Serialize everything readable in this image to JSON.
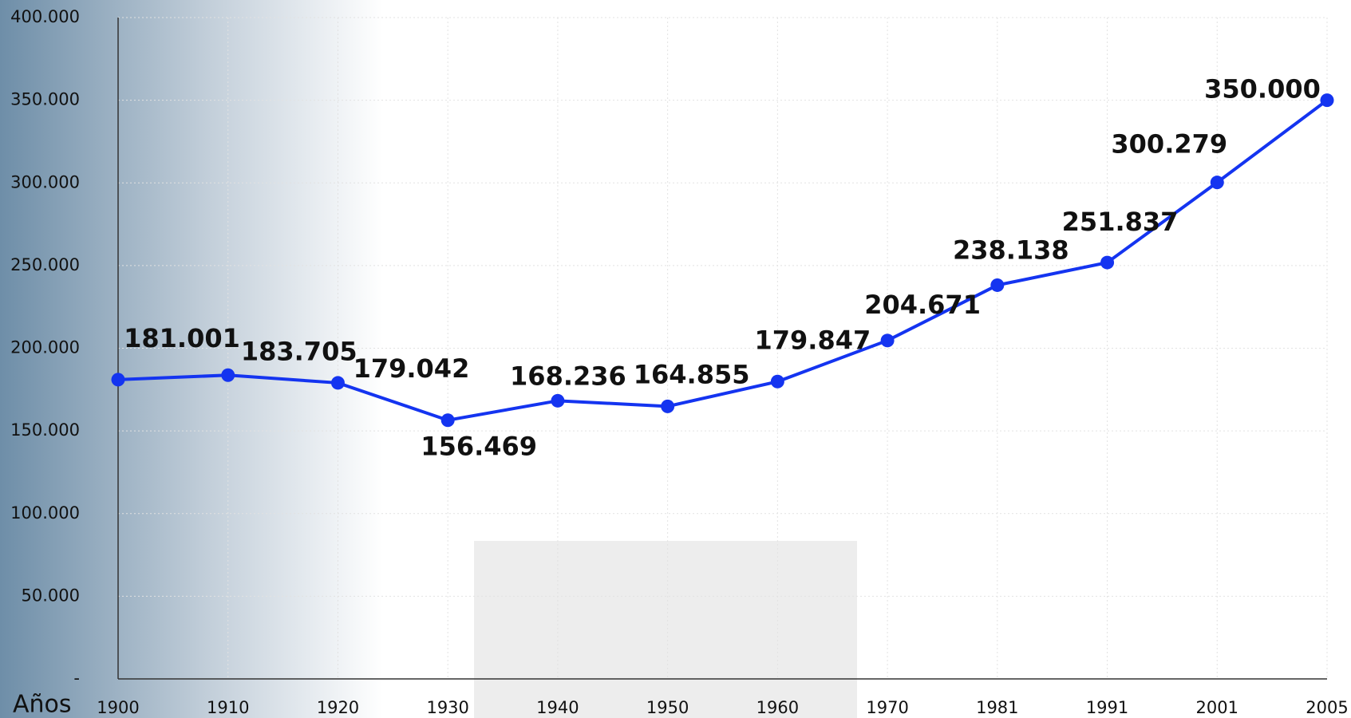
{
  "chart_data": {
    "type": "line",
    "x_label": "Años",
    "categories": [
      "1900",
      "1910",
      "1920",
      "1930",
      "1940",
      "1950",
      "1960",
      "1970",
      "1981",
      "1991",
      "2001",
      "2005"
    ],
    "series": [
      {
        "color": "#1434f0",
        "values": [
          181001,
          183705,
          179042,
          156469,
          168236,
          164855,
          179847,
          204671,
          238138,
          251837,
          300279,
          350000
        ],
        "value_labels": [
          "181.001",
          "183.705",
          "179.042",
          "156.469",
          "168.236",
          "164.855",
          "179.847",
          "204.671",
          "238.138",
          "251.837",
          "300.279",
          "350.000"
        ]
      }
    ],
    "ylim": [
      0,
      400000
    ],
    "yticks": [
      {
        "value": 0,
        "label": "-"
      },
      {
        "value": 50000,
        "label": "50.000"
      },
      {
        "value": 100000,
        "label": "100.000"
      },
      {
        "value": 150000,
        "label": "150.000"
      },
      {
        "value": 200000,
        "label": "200.000"
      },
      {
        "value": 250000,
        "label": "250.000"
      },
      {
        "value": 300000,
        "label": "300.000"
      },
      {
        "value": 350000,
        "label": "350.000"
      },
      {
        "value": 400000,
        "label": "400.000"
      }
    ],
    "grid": true
  }
}
